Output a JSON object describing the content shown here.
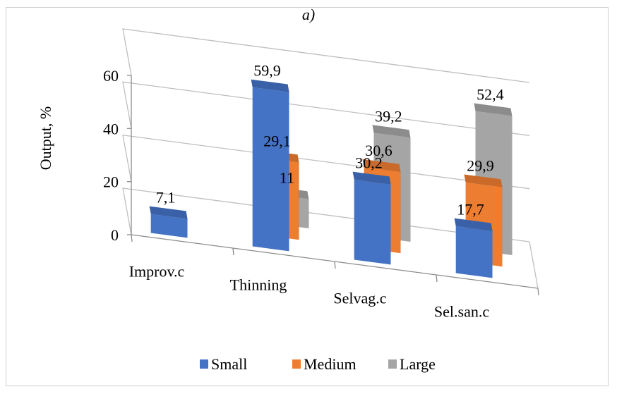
{
  "chart_data": {
    "type": "bar",
    "subtype": "3d-column",
    "title": "a)",
    "ylabel": "Output, %",
    "xlabel": "",
    "ylim": [
      0,
      60
    ],
    "yticks": [
      "0",
      "20",
      "40",
      "60"
    ],
    "categories": [
      "Improv.c",
      "Thinning",
      "Selvag.c",
      "Sel.san.c"
    ],
    "series": [
      {
        "name": "Small",
        "color": "#4472c4",
        "values": [
          7.1,
          59.9,
          30.2,
          17.7
        ],
        "labels": [
          "7,1",
          "59,9",
          "30,2",
          "17,7"
        ]
      },
      {
        "name": "Medium",
        "color": "#ed7d31",
        "values": [
          null,
          29.1,
          30.6,
          29.9
        ],
        "labels": [
          "",
          "29,1",
          "30,6",
          "29,9"
        ]
      },
      {
        "name": "Large",
        "color": "#a5a5a5",
        "values": [
          null,
          11,
          39.2,
          52.4
        ],
        "labels": [
          "",
          "11",
          "39,2",
          "52,4"
        ]
      }
    ],
    "grid": true,
    "legend_position": "bottom"
  }
}
